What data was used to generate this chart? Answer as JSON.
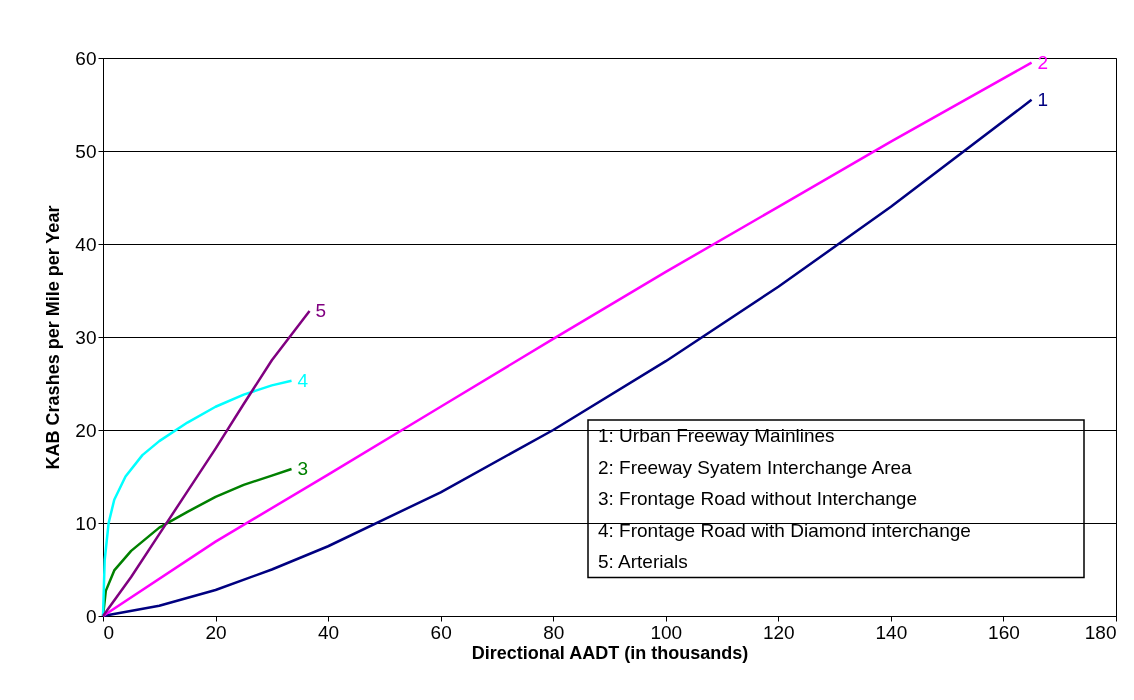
{
  "chart_data": {
    "type": "line",
    "xlabel": "Directional AADT (in thousands)",
    "ylabel": "KAB Crashes per Mile per  Year",
    "xlim": [
      0,
      180
    ],
    "xticks": [
      0,
      20,
      40,
      60,
      80,
      100,
      120,
      140,
      160,
      180
    ],
    "ylim": [
      0,
      60
    ],
    "yticks": [
      0,
      10,
      20,
      30,
      40,
      50,
      60
    ],
    "grid": "y",
    "legend": false,
    "marker": "none",
    "line_style": "solid",
    "series": [
      {
        "name": "1",
        "color": "#000080",
        "x": [
          0,
          10,
          20,
          30,
          40,
          60,
          80,
          100,
          120,
          140,
          165
        ],
        "values": [
          0,
          1.1,
          2.8,
          5,
          7.5,
          13.3,
          20,
          27.4,
          35.4,
          44,
          55.5
        ]
      },
      {
        "name": "2",
        "color": "#ff00ff",
        "x": [
          0,
          20,
          40,
          60,
          80,
          100,
          120,
          140,
          165
        ],
        "values": [
          0,
          8,
          15.2,
          22.5,
          29.8,
          37,
          44,
          51,
          59.5
        ]
      },
      {
        "name": "3",
        "color": "#008000",
        "x": [
          0,
          0.5,
          2,
          5,
          10,
          15,
          20,
          25,
          30,
          33.5
        ],
        "values": [
          0,
          2.7,
          4.9,
          7,
          9.5,
          11.2,
          12.8,
          14.1,
          15.1,
          15.8
        ]
      },
      {
        "name": "4",
        "color": "#00ffff",
        "x": [
          0,
          0.3,
          1,
          2,
          4,
          7,
          10,
          15,
          20,
          25,
          30,
          33.5
        ],
        "values": [
          0,
          6,
          10,
          12.5,
          15,
          17.3,
          18.8,
          20.8,
          22.5,
          23.8,
          24.8,
          25.3
        ]
      },
      {
        "name": "5",
        "color": "#800080",
        "x": [
          0,
          5,
          10,
          15,
          20,
          25,
          30,
          36.7
        ],
        "values": [
          0,
          4.2,
          8.8,
          13.4,
          18,
          22.8,
          27.5,
          32.8
        ]
      }
    ],
    "annotations": [
      "1: Urban Freeway Mainlines",
      "2: Freeway Syatem Interchange Area",
      "3: Frontage Road without Interchange",
      "4: Frontage Road with Diamond interchange",
      "5: Arterials"
    ]
  }
}
